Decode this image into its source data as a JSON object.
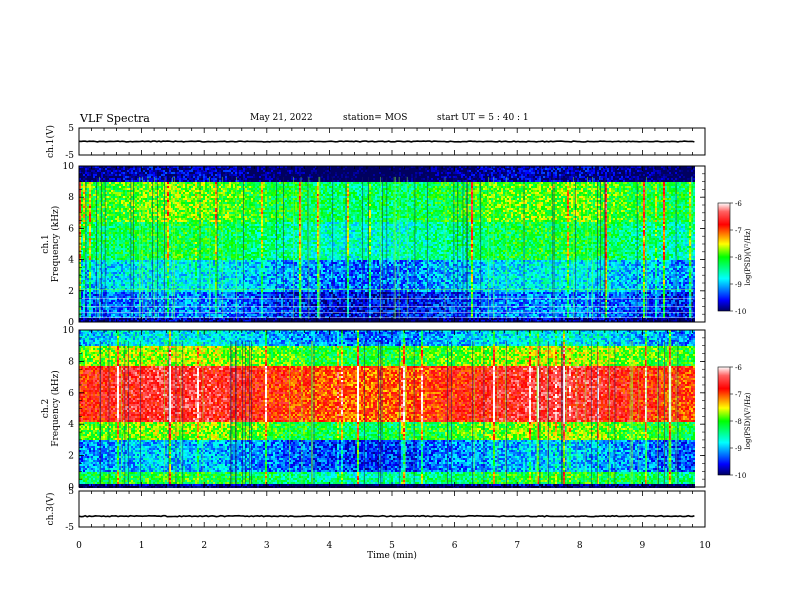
{
  "header": {
    "title": "VLF Spectra",
    "date": "May 21, 2022",
    "station": "station= MOS",
    "start": "start  UT =  5 : 40 : 1"
  },
  "chart_data": [
    {
      "type": "line",
      "panel": "ch1-voltage",
      "ylabel": "ch.1(V)",
      "ylim": [
        -5,
        5
      ],
      "yticks": [
        "5",
        "-5"
      ],
      "x": [
        0,
        9.83
      ],
      "y": [
        0,
        0
      ],
      "xlim": [
        0,
        10
      ]
    },
    {
      "type": "heatmap",
      "panel": "ch1-spectrogram",
      "ylabel": "ch.1\nFrequency (kHz)",
      "ylim": [
        0,
        10
      ],
      "yticks": [
        "0",
        "2",
        "4",
        "6",
        "8",
        "10"
      ],
      "xlim": [
        0,
        10
      ],
      "x_extent": [
        0,
        9.83
      ],
      "colorbar": {
        "label": "log(PSD)(V²/Hz)",
        "range": [
          -10,
          -6
        ],
        "ticks": [
          "-6",
          "-7",
          "-8",
          "-9",
          "-10"
        ]
      },
      "description_levels": [
        {
          "freq_khz": [
            0,
            0.3
          ],
          "level": -10.0
        },
        {
          "freq_khz": [
            0.3,
            2.0
          ],
          "level": -9.4
        },
        {
          "freq_khz": [
            2.0,
            4.0
          ],
          "level": -9.0
        },
        {
          "freq_khz": [
            4.0,
            6.5
          ],
          "level": -8.4
        },
        {
          "freq_khz": [
            6.5,
            9.0
          ],
          "level": -8.1
        },
        {
          "freq_khz": [
            9.0,
            10
          ],
          "level": -10.0
        }
      ]
    },
    {
      "type": "heatmap",
      "panel": "ch2-spectrogram",
      "ylabel": "ch.2\nFrequency (kHz)",
      "ylim": [
        0,
        10
      ],
      "yticks": [
        "0",
        "2",
        "4",
        "6",
        "8",
        "10"
      ],
      "xlim": [
        0,
        10
      ],
      "x_extent": [
        0,
        9.83
      ],
      "colorbar": {
        "label": "log(PSD)(V²/Hz)",
        "range": [
          -10,
          -6
        ],
        "ticks": [
          "-6",
          "-7",
          "-8",
          "-9",
          "-10"
        ]
      },
      "description_levels": [
        {
          "freq_khz": [
            0,
            0.2
          ],
          "level": -10.0
        },
        {
          "freq_khz": [
            0.2,
            1.0
          ],
          "level": -8.3
        },
        {
          "freq_khz": [
            1.0,
            3.0
          ],
          "level": -9.2
        },
        {
          "freq_khz": [
            3.0,
            4.2
          ],
          "level": -8.0
        },
        {
          "freq_khz": [
            4.2,
            7.8
          ],
          "level": -6.8
        },
        {
          "freq_khz": [
            7.8,
            9.0
          ],
          "level": -7.9
        },
        {
          "freq_khz": [
            9.0,
            10
          ],
          "level": -9.0
        }
      ]
    },
    {
      "type": "line",
      "panel": "ch3-voltage",
      "ylabel": "ch.3(V)",
      "ylim": [
        -5,
        5
      ],
      "yticks": [
        "5",
        "-5"
      ],
      "x": [
        0,
        9.83
      ],
      "y": [
        -2,
        -2
      ],
      "xlim": [
        0,
        10
      ],
      "xlabel": "Time (min)",
      "xticks": [
        "0",
        "1",
        "2",
        "3",
        "4",
        "5",
        "6",
        "7",
        "8",
        "9",
        "10"
      ]
    }
  ]
}
